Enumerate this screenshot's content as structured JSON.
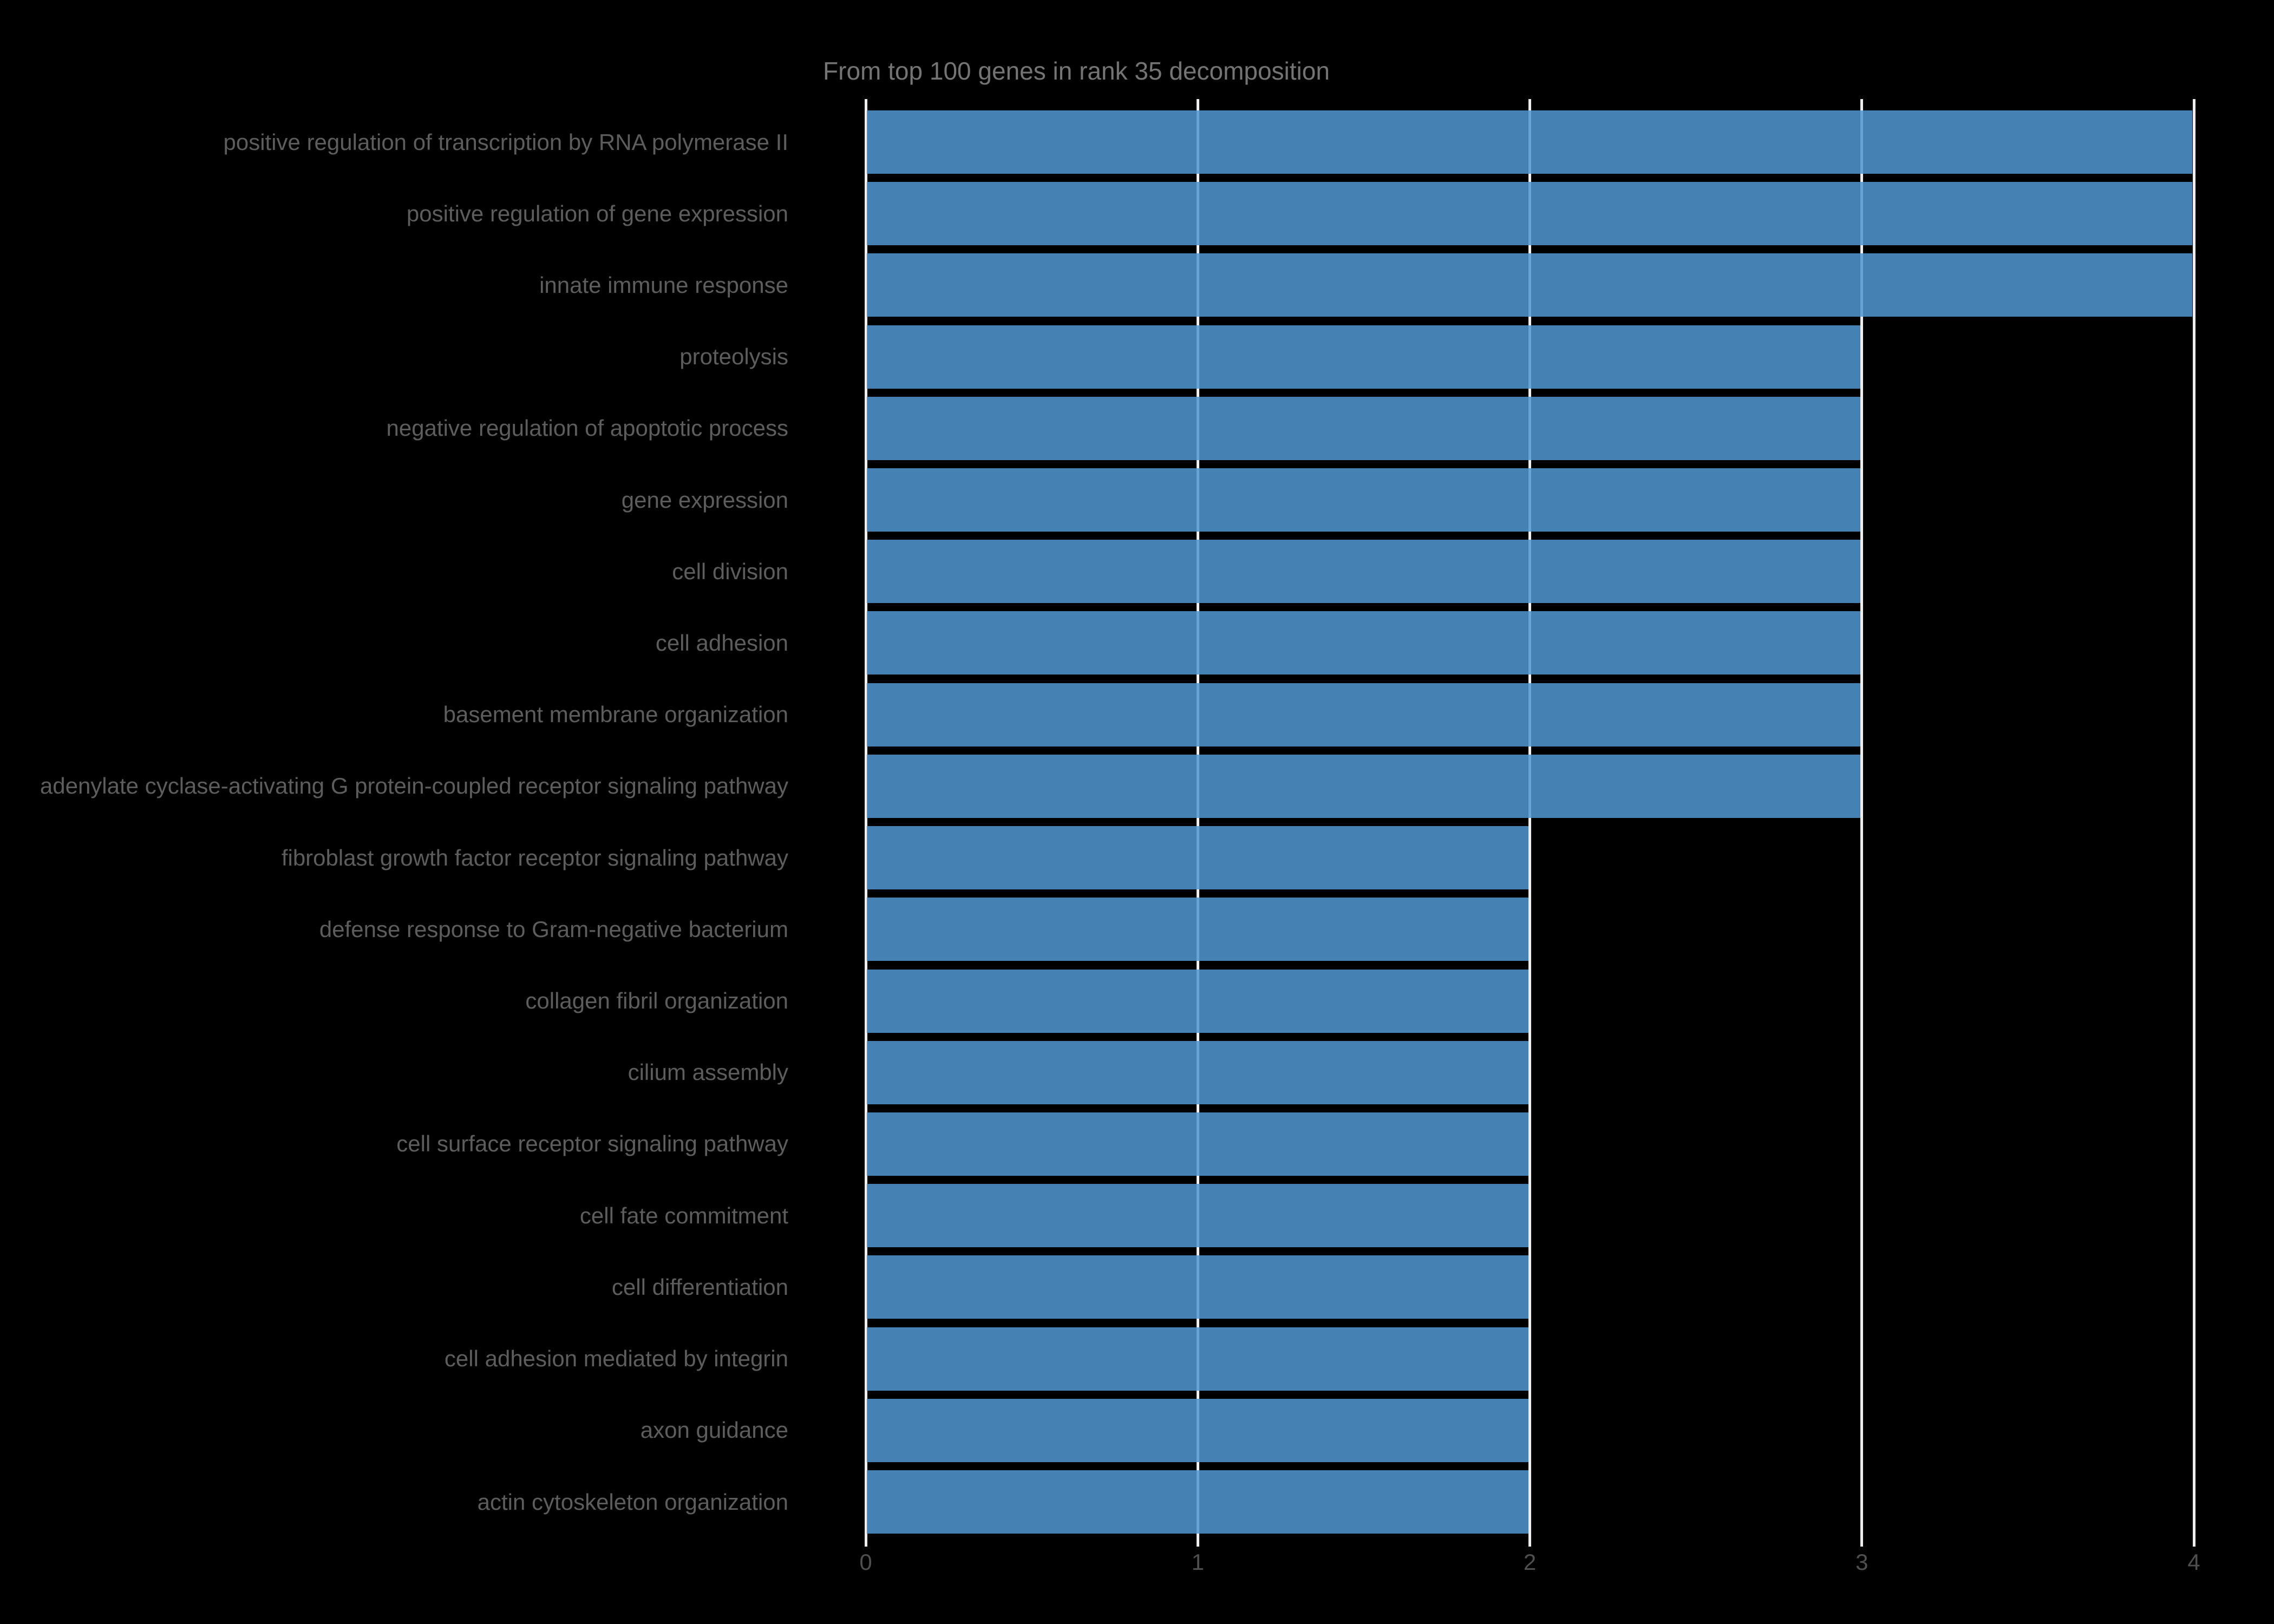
{
  "title": "From top 100 genes in rank 35 decomposition",
  "colors": {
    "background": "#000000",
    "bar_effective": "#4682b4",
    "bar_fill_rgba": "rgba(82,150,209,0.86)",
    "grid": "#ededf0",
    "title_text": "#747474",
    "label_text": "#5d5d5d",
    "tick_text": "#4f4f4f"
  },
  "chart_data": {
    "type": "bar",
    "orientation": "horizontal",
    "title": "From top 100 genes in rank 35 decomposition",
    "xlabel": "",
    "ylabel": "",
    "xlim": [
      0,
      4
    ],
    "xticks": [
      0,
      1,
      2,
      3,
      4
    ],
    "grid": true,
    "legend": false,
    "categories": [
      "positive regulation of transcription by RNA polymerase II",
      "positive regulation of gene expression",
      "innate immune response",
      "proteolysis",
      "negative regulation of apoptotic process",
      "gene expression",
      "cell division",
      "cell adhesion",
      "basement membrane organization",
      "adenylate cyclase-activating G protein-coupled receptor signaling pathway",
      "fibroblast growth factor receptor signaling pathway",
      "defense response to Gram-negative bacterium",
      "collagen fibril organization",
      "cilium assembly",
      "cell surface receptor signaling pathway",
      "cell fate commitment",
      "cell differentiation",
      "cell adhesion mediated by integrin",
      "axon guidance",
      "actin cytoskeleton organization"
    ],
    "values": [
      4,
      4,
      4,
      3,
      3,
      3,
      3,
      3,
      3,
      3,
      2,
      2,
      2,
      2,
      2,
      2,
      2,
      2,
      2,
      2
    ]
  }
}
